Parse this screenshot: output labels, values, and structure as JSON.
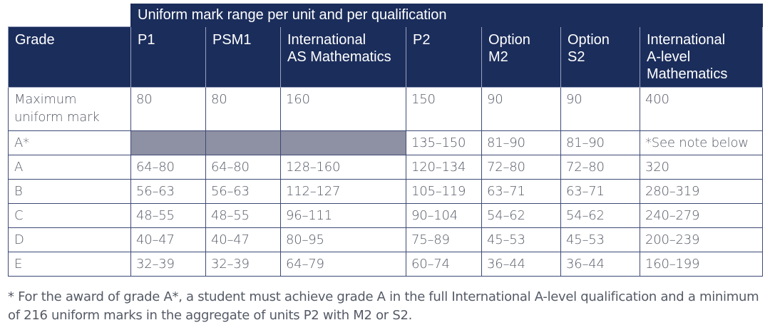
{
  "table": {
    "super_header": "Uniform mark range per unit and per qualification",
    "columns": [
      "Grade",
      "P1",
      "PSM1",
      "International\nAS Mathematics",
      "P2",
      "Option\nM2",
      "Option\nS2",
      "International\nA-level\nMathematics"
    ],
    "rows": [
      {
        "grade": "Maximum uniform mark",
        "cells": [
          "80",
          "80",
          "160",
          "150",
          "90",
          "90",
          "400"
        ],
        "shaded": [
          false,
          false,
          false,
          false,
          false,
          false,
          false
        ]
      },
      {
        "grade": "A*",
        "cells": [
          "",
          "",
          "",
          "135–150",
          "81–90",
          "81–90",
          "*See note below"
        ],
        "shaded": [
          true,
          true,
          true,
          false,
          false,
          false,
          false
        ]
      },
      {
        "grade": "A",
        "cells": [
          "64–80",
          "64–80",
          "128–160",
          "120–134",
          "72–80",
          "72–80",
          "320"
        ],
        "shaded": [
          false,
          false,
          false,
          false,
          false,
          false,
          false
        ]
      },
      {
        "grade": "B",
        "cells": [
          "56–63",
          "56–63",
          "112–127",
          "105–119",
          "63–71",
          "63–71",
          "280–319"
        ],
        "shaded": [
          false,
          false,
          false,
          false,
          false,
          false,
          false
        ]
      },
      {
        "grade": "C",
        "cells": [
          "48–55",
          "48–55",
          "96–111",
          "90–104",
          "54–62",
          "54–62",
          "240–279"
        ],
        "shaded": [
          false,
          false,
          false,
          false,
          false,
          false,
          false
        ]
      },
      {
        "grade": "D",
        "cells": [
          "40–47",
          "40–47",
          "80–95",
          "75–89",
          "45–53",
          "45–53",
          "200–239"
        ],
        "shaded": [
          false,
          false,
          false,
          false,
          false,
          false,
          false
        ]
      },
      {
        "grade": "E",
        "cells": [
          "32–39",
          "32–39",
          "64–79",
          "60–74",
          "36–44",
          "36–44",
          "160–199"
        ],
        "shaded": [
          false,
          false,
          false,
          false,
          false,
          false,
          false
        ]
      }
    ]
  },
  "footnote": "* For the award of grade A*, a student must achieve grade A in the full International A-level qualification and a minimum of 216 uniform marks in the aggregate of units P2 with M2 or S2.",
  "colors": {
    "header_bg": "#1b2d5b",
    "header_text": "#ffffff",
    "shaded_cell": "#8e90a3",
    "body_text": "#555a66",
    "border": "#3d4a75"
  }
}
